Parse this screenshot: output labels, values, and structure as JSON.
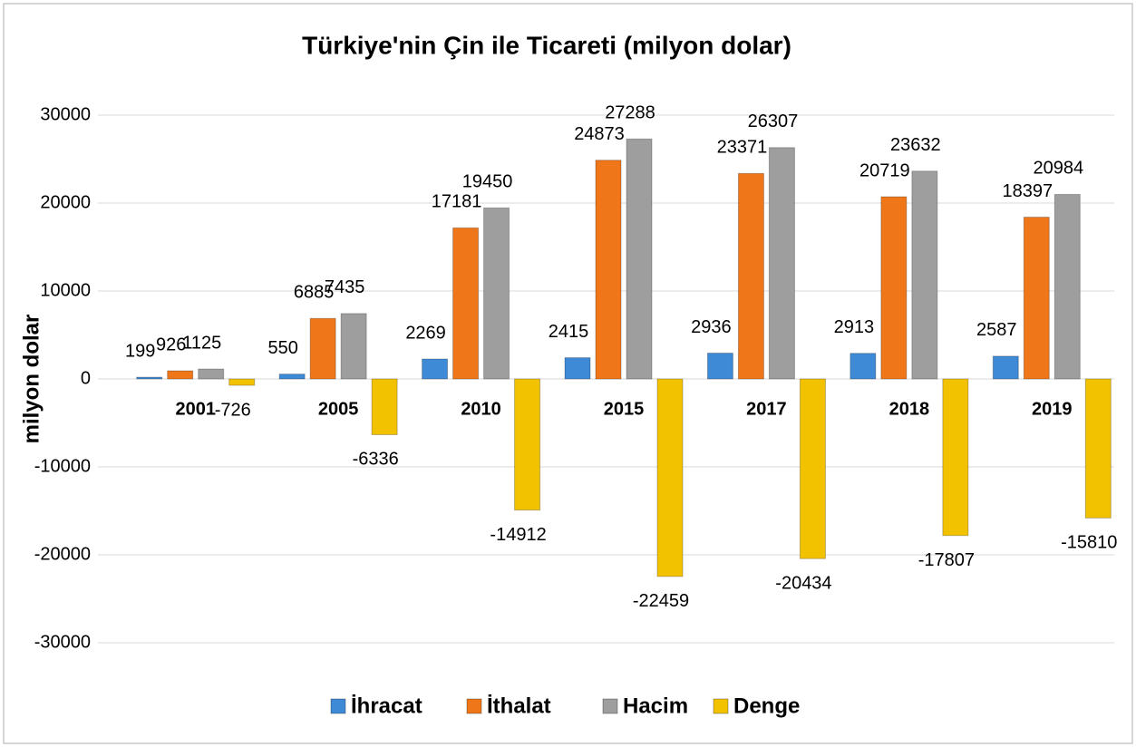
{
  "chart_data": {
    "type": "bar",
    "title": "Türkiye'nin Çin ile Ticareti (milyon dolar)",
    "y_label": "milyon dolar",
    "categories": [
      "2001",
      "2005",
      "2010",
      "2015",
      "2017",
      "2018",
      "2019"
    ],
    "series": [
      {
        "name": "İhracat",
        "color": "#3f8ad6",
        "values": [
          199,
          550,
          2269,
          2415,
          2936,
          2913,
          2587
        ]
      },
      {
        "name": "İthalat",
        "color": "#f0761a",
        "values": [
          926,
          6885,
          17181,
          24873,
          23371,
          20719,
          18397
        ]
      },
      {
        "name": "Hacim",
        "color": "#9e9e9e",
        "values": [
          1125,
          7435,
          19450,
          27288,
          26307,
          23632,
          20984
        ]
      },
      {
        "name": "Denge",
        "color": "#f2c200",
        "values": [
          -726,
          -6336,
          -14912,
          -22459,
          -20434,
          -17807,
          -15810
        ]
      }
    ],
    "ylim": [
      -30000,
      30000
    ],
    "yticks": [
      -30000,
      -20000,
      -10000,
      0,
      10000,
      20000,
      30000
    ],
    "grid": true,
    "legend": "bottom"
  }
}
